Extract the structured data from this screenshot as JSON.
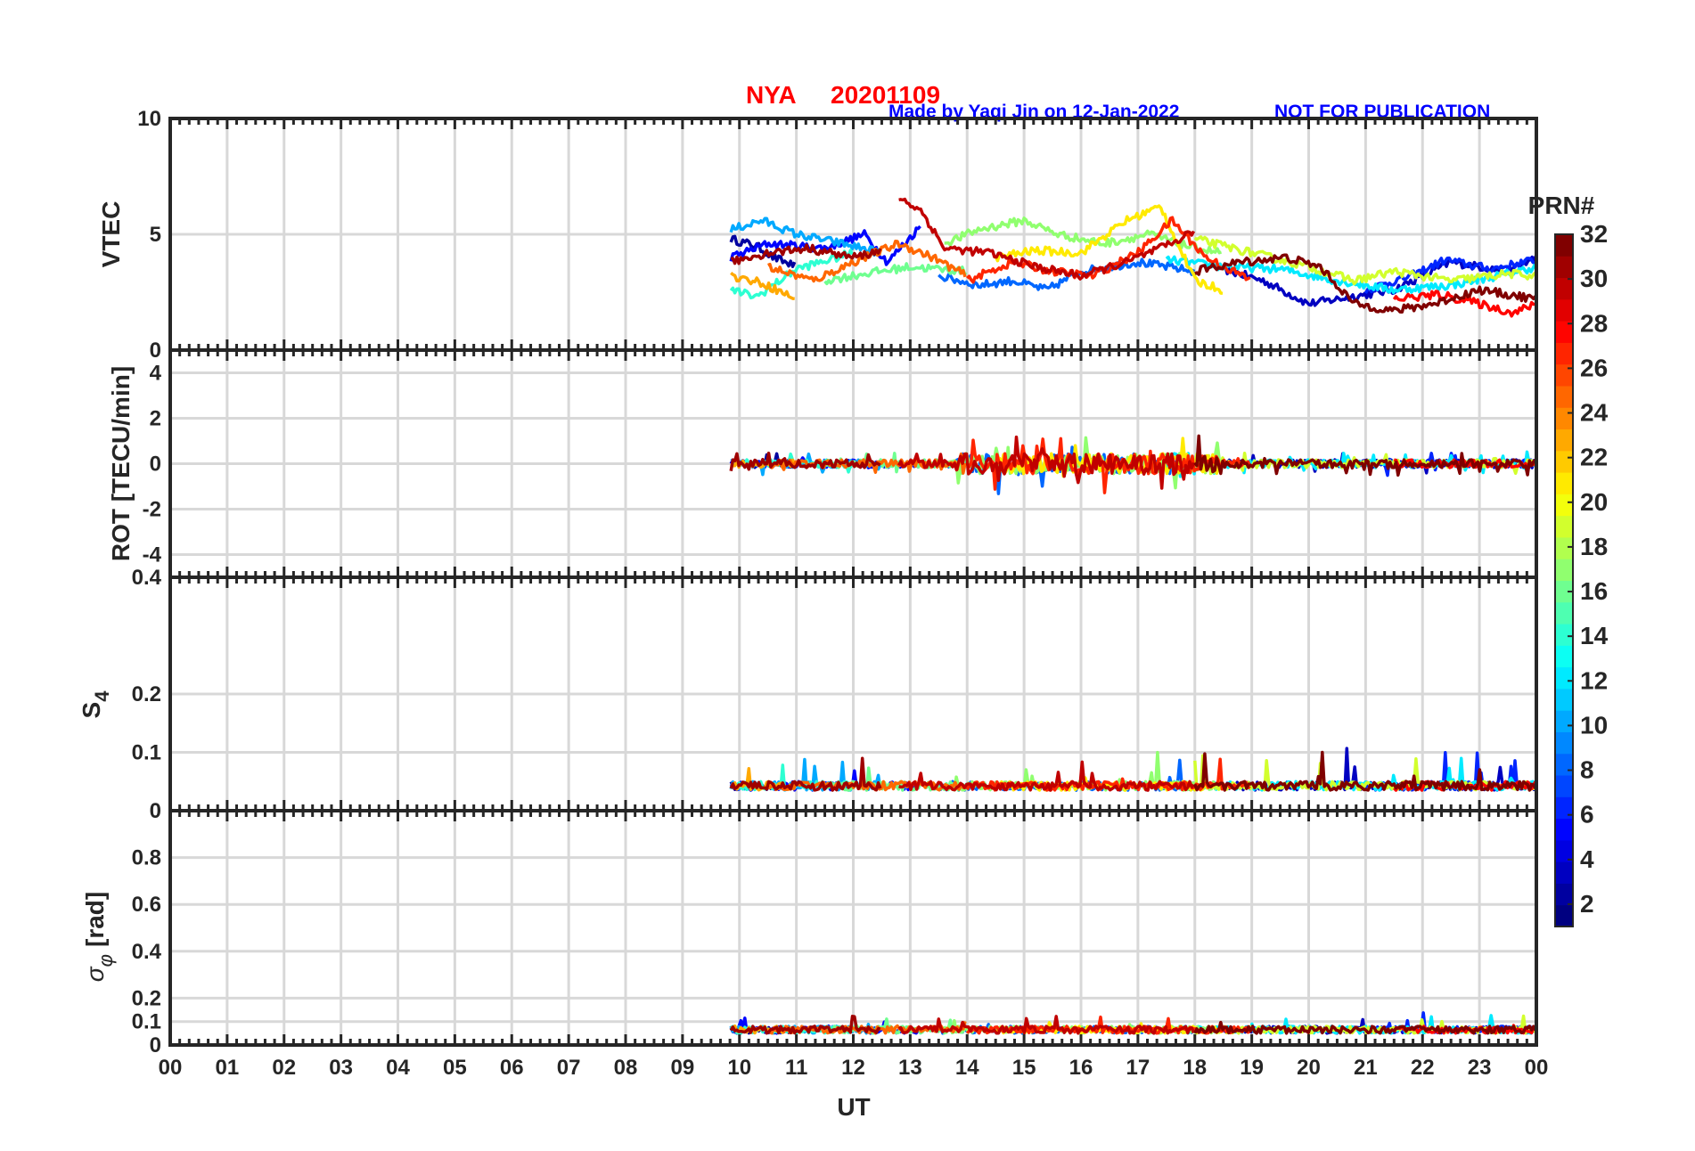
{
  "header": {
    "station": "NYA",
    "date": "20201109",
    "credit": "Made by Yaqi Jin on 12-Jan-2022",
    "notice": "NOT FOR PUBLICATION",
    "station_color": "#ff0000",
    "credit_color": "#0000ff"
  },
  "chart_data": {
    "type": "line",
    "x_label": "UT",
    "x_ticks": [
      "00",
      "01",
      "02",
      "03",
      "04",
      "05",
      "06",
      "07",
      "08",
      "09",
      "10",
      "11",
      "12",
      "13",
      "14",
      "15",
      "16",
      "17",
      "18",
      "19",
      "20",
      "21",
      "22",
      "23",
      "00"
    ],
    "x_range_hours": [
      0,
      24
    ],
    "data_coverage_hours": [
      9.85,
      24
    ],
    "colorbar": {
      "title": "PRN#",
      "range": [
        1,
        32
      ],
      "ticks": [
        "2",
        "4",
        "6",
        "8",
        "10",
        "12",
        "14",
        "16",
        "18",
        "20",
        "22",
        "24",
        "26",
        "28",
        "30",
        "32"
      ],
      "colormap": "jet"
    },
    "panels": [
      {
        "id": "vtec",
        "ylabel": "VTEC",
        "ylim": [
          0,
          10
        ],
        "yticks": [
          "0",
          "5",
          "10"
        ],
        "typical_range": [
          1.5,
          6.5
        ]
      },
      {
        "id": "rot",
        "ylabel": "ROT [TECU/min]",
        "ylim": [
          -5,
          5
        ],
        "yticks": [
          "-4",
          "-2",
          "0",
          "2",
          "4"
        ],
        "typical_range": [
          -1.5,
          2.1
        ]
      },
      {
        "id": "s4",
        "ylabel_main": "S",
        "ylabel_sub": "4",
        "ylim": [
          0,
          0.4
        ],
        "yticks": [
          "0",
          "0.1",
          "0.2",
          "0.4"
        ],
        "typical_range": [
          0.03,
          0.14
        ]
      },
      {
        "id": "sigma",
        "ylabel_symbol": "σ",
        "ylabel_sub": "φ",
        "ylabel_unit": "[rad]",
        "ylim": [
          0,
          1
        ],
        "yticks": [
          "0",
          "0.1",
          "0.2",
          "0.4",
          "0.6",
          "0.8"
        ],
        "typical_range": [
          0.04,
          0.18
        ]
      }
    ],
    "series": [
      {
        "prn": 2,
        "start": 9.85,
        "end": 11.0,
        "vtec": [
          [
            9.85,
            4.8
          ],
          [
            10.3,
            4.5
          ],
          [
            10.6,
            4.0
          ],
          [
            11.0,
            3.6
          ]
        ]
      },
      {
        "prn": 3,
        "start": 18.5,
        "end": 24.0,
        "vtec": [
          [
            18.5,
            3.5
          ],
          [
            19.2,
            3.0
          ],
          [
            20.0,
            2.0
          ],
          [
            21.5,
            2.6
          ],
          [
            22.5,
            3.8
          ],
          [
            23.5,
            3.4
          ],
          [
            24,
            4.0
          ]
        ]
      },
      {
        "prn": 5,
        "start": 9.85,
        "end": 13.2,
        "vtec": [
          [
            9.85,
            4.0
          ],
          [
            10.5,
            4.6
          ],
          [
            11.5,
            4.4
          ],
          [
            12.2,
            5.0
          ],
          [
            12.6,
            3.8
          ],
          [
            13.2,
            5.4
          ]
        ]
      },
      {
        "prn": 6,
        "start": 21.0,
        "end": 24.0,
        "vtec": [
          [
            21.0,
            2.6
          ],
          [
            21.8,
            3.2
          ],
          [
            22.4,
            3.9
          ],
          [
            23.2,
            3.5
          ],
          [
            24,
            3.9
          ]
        ]
      },
      {
        "prn": 8,
        "start": 13.5,
        "end": 18.0,
        "vtec": [
          [
            13.5,
            3.2
          ],
          [
            14.2,
            2.8
          ],
          [
            14.8,
            3.0
          ],
          [
            15.4,
            2.6
          ],
          [
            16.0,
            3.4
          ],
          [
            17.0,
            3.8
          ],
          [
            18.0,
            3.4
          ]
        ]
      },
      {
        "prn": 10,
        "start": 9.85,
        "end": 12.5,
        "vtec": [
          [
            9.85,
            5.2
          ],
          [
            10.4,
            5.6
          ],
          [
            11.0,
            5.0
          ],
          [
            11.8,
            4.6
          ],
          [
            12.5,
            4.2
          ]
        ]
      },
      {
        "prn": 12,
        "start": 17.5,
        "end": 24.0,
        "vtec": [
          [
            17.5,
            3.9
          ],
          [
            18.5,
            3.6
          ],
          [
            19.5,
            3.5
          ],
          [
            20.5,
            3.0
          ],
          [
            21.5,
            2.6
          ],
          [
            22.5,
            2.8
          ],
          [
            23.5,
            3.3
          ],
          [
            24,
            3.6
          ]
        ]
      },
      {
        "prn": 14,
        "start": 9.85,
        "end": 12.0,
        "vtec": [
          [
            9.85,
            2.6
          ],
          [
            10.3,
            2.3
          ],
          [
            11.0,
            3.5
          ],
          [
            12.0,
            4.2
          ]
        ]
      },
      {
        "prn": 16,
        "start": 11.5,
        "end": 14.0,
        "vtec": [
          [
            11.5,
            3.0
          ],
          [
            12.2,
            3.3
          ],
          [
            13.0,
            3.6
          ],
          [
            14.0,
            3.4
          ]
        ]
      },
      {
        "prn": 17,
        "start": 13.6,
        "end": 18.5,
        "vtec": [
          [
            13.6,
            4.6
          ],
          [
            14.2,
            5.2
          ],
          [
            15.0,
            5.6
          ],
          [
            15.6,
            5.0
          ],
          [
            16.4,
            4.6
          ],
          [
            17.2,
            5.0
          ],
          [
            18.0,
            4.4
          ],
          [
            18.5,
            4.2
          ]
        ]
      },
      {
        "prn": 19,
        "start": 18.0,
        "end": 24.0,
        "vtec": [
          [
            18.0,
            4.8
          ],
          [
            19.0,
            4.2
          ],
          [
            20.0,
            3.6
          ],
          [
            20.8,
            3.0
          ],
          [
            21.5,
            3.4
          ],
          [
            22.5,
            3.0
          ],
          [
            23.5,
            3.3
          ],
          [
            24,
            3.2
          ]
        ]
      },
      {
        "prn": 21,
        "start": 14.5,
        "end": 18.5,
        "vtec": [
          [
            14.5,
            4.0
          ],
          [
            15.2,
            4.3
          ],
          [
            16.0,
            4.2
          ],
          [
            16.8,
            5.6
          ],
          [
            17.4,
            6.2
          ],
          [
            18.0,
            3.0
          ],
          [
            18.5,
            2.6
          ]
        ]
      },
      {
        "prn": 23,
        "start": 9.85,
        "end": 11.0,
        "vtec": [
          [
            9.85,
            3.2
          ],
          [
            10.4,
            2.9
          ],
          [
            11.0,
            2.2
          ]
        ]
      },
      {
        "prn": 25,
        "start": 10.5,
        "end": 14.0,
        "vtec": [
          [
            10.5,
            3.6
          ],
          [
            11.3,
            3.0
          ],
          [
            12.0,
            3.8
          ],
          [
            12.8,
            4.6
          ],
          [
            13.4,
            4.0
          ],
          [
            14.0,
            3.2
          ]
        ]
      },
      {
        "prn": 27,
        "start": 14.0,
        "end": 19.0,
        "vtec": [
          [
            14.0,
            3.0
          ],
          [
            14.8,
            3.8
          ],
          [
            15.5,
            3.4
          ],
          [
            16.2,
            3.2
          ],
          [
            17.0,
            4.2
          ],
          [
            17.6,
            5.6
          ],
          [
            18.2,
            4.0
          ],
          [
            19.0,
            3.0
          ]
        ]
      },
      {
        "prn": 28,
        "start": 21.5,
        "end": 24.0,
        "vtec": [
          [
            21.5,
            2.2
          ],
          [
            22.3,
            2.4
          ],
          [
            23.0,
            2.0
          ],
          [
            23.6,
            1.6
          ],
          [
            24,
            2.0
          ]
        ]
      },
      {
        "prn": 30,
        "start": 12.8,
        "end": 18.0,
        "vtec": [
          [
            12.8,
            6.6
          ],
          [
            13.2,
            6.0
          ],
          [
            13.6,
            4.4
          ],
          [
            14.4,
            4.2
          ],
          [
            15.2,
            3.6
          ],
          [
            16.0,
            3.2
          ],
          [
            16.8,
            3.8
          ],
          [
            17.6,
            4.6
          ],
          [
            18.0,
            5.2
          ]
        ]
      },
      {
        "prn": 31,
        "start": 9.85,
        "end": 12.5,
        "vtec": [
          [
            9.85,
            3.8
          ],
          [
            10.5,
            4.2
          ],
          [
            11.2,
            4.4
          ],
          [
            12.0,
            4.0
          ],
          [
            12.5,
            4.3
          ]
        ]
      },
      {
        "prn": 32,
        "start": 18.0,
        "end": 24.0,
        "vtec": [
          [
            18.0,
            3.4
          ],
          [
            18.8,
            3.8
          ],
          [
            19.6,
            4.0
          ],
          [
            20.2,
            3.6
          ],
          [
            20.8,
            2.0
          ],
          [
            21.5,
            1.7
          ],
          [
            22.2,
            2.0
          ],
          [
            23.0,
            2.6
          ],
          [
            24,
            2.2
          ]
        ]
      }
    ]
  }
}
